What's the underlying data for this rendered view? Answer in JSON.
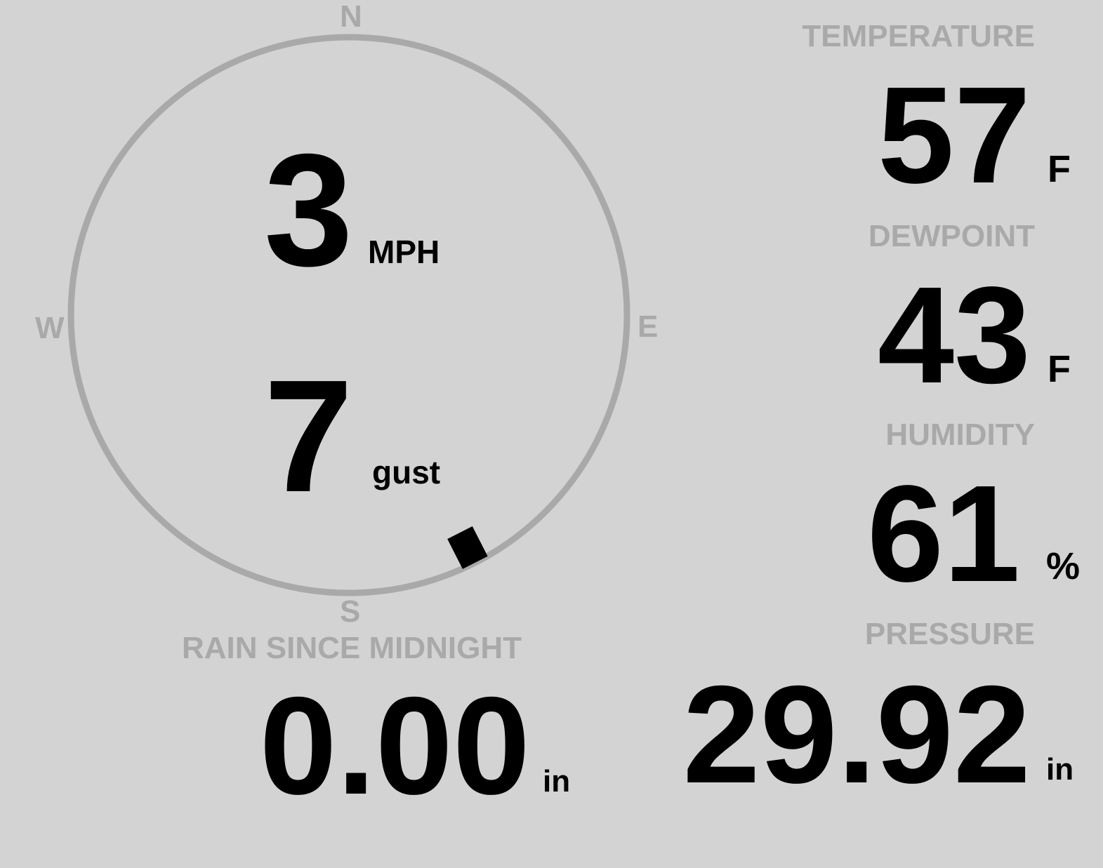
{
  "colors": {
    "background": "#d3d3d3",
    "label": "#a9a9a9",
    "value": "#000000",
    "ring": "#a9a9a9"
  },
  "wind": {
    "directions": {
      "n": "N",
      "e": "E",
      "s": "S",
      "w": "W"
    },
    "direction_degrees": 153,
    "speed": "3",
    "speed_unit": "MPH",
    "gust": "7",
    "gust_unit": "gust"
  },
  "temperature": {
    "label": "TEMPERATURE",
    "value": "57",
    "unit": "F"
  },
  "dewpoint": {
    "label": "DEWPOINT",
    "value": "43",
    "unit": "F"
  },
  "humidity": {
    "label": "HUMIDITY",
    "value": "61",
    "unit": "%"
  },
  "pressure": {
    "label": "PRESSURE",
    "value": "29.92",
    "unit": "in"
  },
  "rain": {
    "label": "RAIN SINCE MIDNIGHT",
    "value": "0.00",
    "unit": "in"
  }
}
